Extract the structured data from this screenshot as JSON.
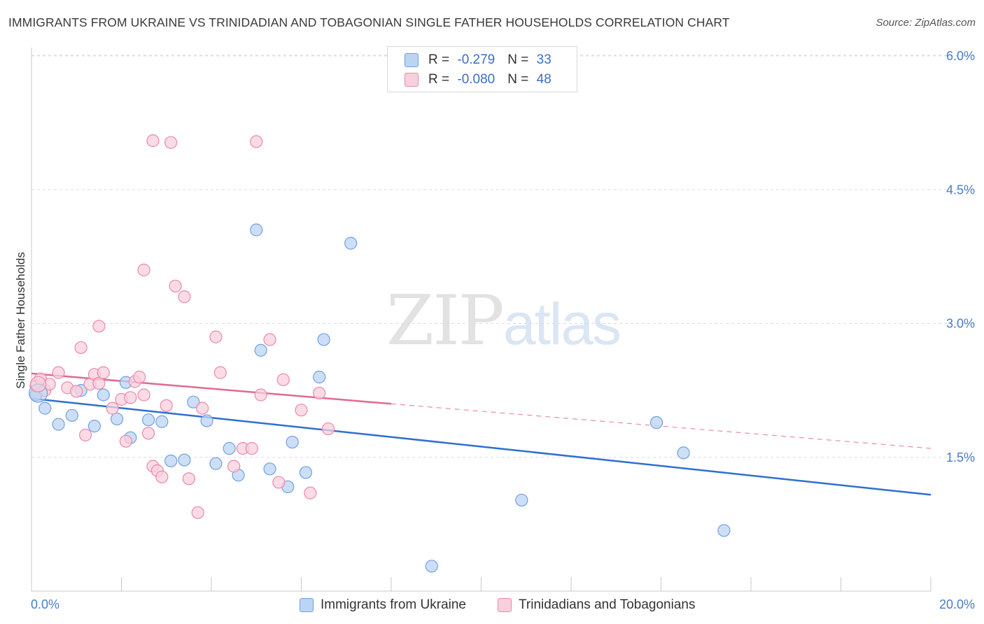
{
  "title": "IMMIGRANTS FROM UKRAINE VS TRINIDADIAN AND TOBAGONIAN SINGLE FATHER HOUSEHOLDS CORRELATION CHART",
  "source": "Source: ZipAtlas.com",
  "watermark": {
    "zip": "ZIP",
    "atlas": "atlas"
  },
  "legend": {
    "rows": [
      {
        "r_label": "R = ",
        "r_value": "-0.279",
        "n_label": "N = ",
        "n_value": "33",
        "color": "#a9c6ef"
      },
      {
        "r_label": "R = ",
        "r_value": "-0.080",
        "n_label": "N = ",
        "n_value": "48",
        "color": "#f5b8cb"
      }
    ]
  },
  "chart_data": {
    "type": "scatter",
    "title": "IMMIGRANTS FROM UKRAINE VS TRINIDADIAN AND TOBAGONIAN SINGLE FATHER HOUSEHOLDS CORRELATION CHART",
    "xlabel": "",
    "ylabel": "Single Father Households",
    "xlim": [
      0,
      20
    ],
    "ylim": [
      0,
      6.3
    ],
    "x_tick_labels": [
      "0.0%",
      "20.0%"
    ],
    "y_ticks": [
      1.5,
      3.0,
      4.5,
      6.0
    ],
    "y_tick_labels": [
      "1.5%",
      "3.0%",
      "4.5%",
      "6.0%"
    ],
    "grid": true,
    "legend_position": "bottom",
    "series": [
      {
        "name": "Immigrants from Ukraine",
        "color": "#6fa0e0",
        "fill": "#bcd4f4",
        "trend": {
          "x": [
            0,
            20
          ],
          "y": [
            2.16,
            1.08
          ],
          "style": "solid"
        },
        "points": [
          [
            0.1,
            2.2
          ],
          [
            0.3,
            2.05
          ],
          [
            0.6,
            1.87
          ],
          [
            0.9,
            1.97
          ],
          [
            1.1,
            2.25
          ],
          [
            1.4,
            1.85
          ],
          [
            1.6,
            2.2
          ],
          [
            1.9,
            1.93
          ],
          [
            2.2,
            1.72
          ],
          [
            2.1,
            2.34
          ],
          [
            2.6,
            1.92
          ],
          [
            2.9,
            1.9
          ],
          [
            3.1,
            1.46
          ],
          [
            3.4,
            1.47
          ],
          [
            3.6,
            2.12
          ],
          [
            3.9,
            1.91
          ],
          [
            4.1,
            1.43
          ],
          [
            4.4,
            1.6
          ],
          [
            4.6,
            1.3
          ],
          [
            5.0,
            4.05
          ],
          [
            5.1,
            2.7
          ],
          [
            5.3,
            1.37
          ],
          [
            5.7,
            1.17
          ],
          [
            5.8,
            1.67
          ],
          [
            6.1,
            1.33
          ],
          [
            6.4,
            2.4
          ],
          [
            6.5,
            2.82
          ],
          [
            7.1,
            3.9
          ],
          [
            8.9,
            0.28
          ],
          [
            10.9,
            1.02
          ],
          [
            13.9,
            1.89
          ],
          [
            14.5,
            1.55
          ],
          [
            15.4,
            0.68
          ]
        ]
      },
      {
        "name": "Trinidadians and Tobagonians",
        "color": "#e88aa8",
        "fill": "#f9cfdc",
        "trend": {
          "x": [
            0,
            8
          ],
          "y": [
            2.44,
            2.1
          ],
          "style": "solid",
          "extend_x": [
            8,
            20
          ],
          "extend_y": [
            2.1,
            1.6
          ],
          "extend_style": "dashed"
        },
        "points": [
          [
            0.1,
            2.3
          ],
          [
            0.2,
            2.38
          ],
          [
            0.3,
            2.25
          ],
          [
            0.4,
            2.32
          ],
          [
            0.6,
            2.45
          ],
          [
            0.8,
            2.28
          ],
          [
            1.0,
            2.24
          ],
          [
            1.2,
            1.75
          ],
          [
            1.1,
            2.73
          ],
          [
            1.3,
            2.32
          ],
          [
            1.4,
            2.43
          ],
          [
            1.5,
            2.33
          ],
          [
            1.6,
            2.45
          ],
          [
            1.8,
            2.05
          ],
          [
            2.0,
            2.15
          ],
          [
            2.2,
            2.17
          ],
          [
            2.1,
            1.68
          ],
          [
            2.3,
            2.35
          ],
          [
            2.4,
            2.4
          ],
          [
            2.5,
            2.2
          ],
          [
            2.7,
            1.4
          ],
          [
            2.8,
            1.35
          ],
          [
            2.9,
            1.28
          ],
          [
            3.0,
            2.08
          ],
          [
            2.5,
            3.6
          ],
          [
            2.7,
            5.05
          ],
          [
            3.2,
            3.42
          ],
          [
            3.1,
            5.03
          ],
          [
            3.4,
            3.3
          ],
          [
            3.5,
            1.26
          ],
          [
            3.7,
            0.88
          ],
          [
            4.1,
            2.85
          ],
          [
            4.2,
            2.45
          ],
          [
            4.5,
            1.4
          ],
          [
            4.7,
            1.6
          ],
          [
            4.9,
            1.6
          ],
          [
            5.0,
            5.04
          ],
          [
            5.1,
            2.2
          ],
          [
            5.3,
            2.82
          ],
          [
            5.5,
            1.22
          ],
          [
            5.6,
            2.37
          ],
          [
            6.0,
            2.03
          ],
          [
            6.2,
            1.1
          ],
          [
            6.4,
            2.22
          ],
          [
            6.6,
            1.82
          ],
          [
            1.5,
            2.97
          ],
          [
            2.6,
            1.77
          ],
          [
            3.8,
            2.05
          ]
        ]
      }
    ]
  }
}
